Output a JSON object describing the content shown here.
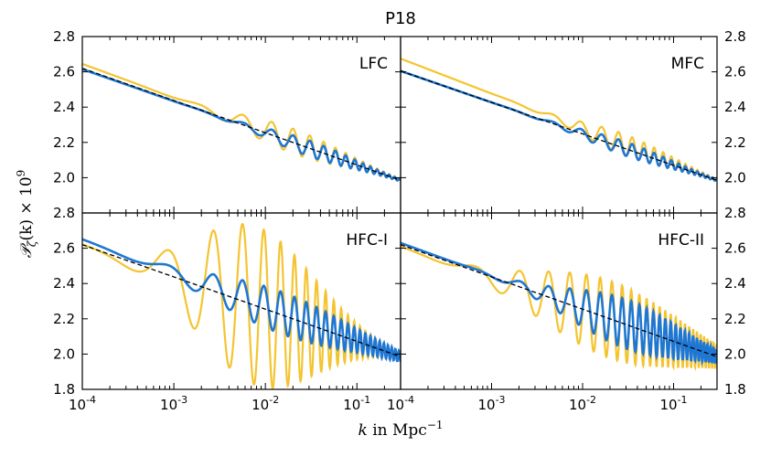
{
  "title": "P18",
  "xlabel_math": "k",
  "xlabel_text": " in Mpc",
  "xlabel_sup": "−1",
  "ylabel_math": "𝒫",
  "ylabel_sub": "ζ",
  "ylabel_rest": "(k) × 10",
  "ylabel_sup": "9",
  "colors": {
    "yellow": "#f4c430",
    "blue": "#1f77d4",
    "baseline": "#000000",
    "frame": "#000000"
  },
  "chart_data": [
    {
      "type": "line",
      "panel_label": "LFC",
      "x_scale": "log",
      "xlim": [
        0.0001,
        0.3
      ],
      "ylim": [
        1.8,
        2.8
      ],
      "yticks": [
        "1.8",
        "2.0",
        "2.2",
        "2.4",
        "2.6",
        "2.8"
      ],
      "xticks": [
        "10^-4",
        "10^-3",
        "10^-2",
        "10^-1"
      ],
      "baseline": {
        "start": 2.62,
        "end": 1.985,
        "style": "dashed"
      },
      "series": [
        {
          "color": "yellow",
          "offset": 0.025,
          "wiggles": [
            {
              "center": 0.02,
              "amp": 0.07,
              "freq": 18,
              "width": 0.8
            }
          ]
        },
        {
          "color": "blue",
          "offset": -0.005,
          "wiggles": [
            {
              "center": 0.03,
              "amp": 0.045,
              "freq": 18,
              "width": 0.7
            }
          ]
        }
      ]
    },
    {
      "type": "line",
      "panel_label": "MFC",
      "x_scale": "log",
      "xlim": [
        0.0001,
        0.3
      ],
      "ylim": [
        1.8,
        2.8
      ],
      "yticks": [
        "1.8",
        "2.0",
        "2.2",
        "2.4",
        "2.6",
        "2.8"
      ],
      "xticks": [
        "10^-4",
        "10^-3",
        "10^-2",
        "10^-1"
      ],
      "baseline": {
        "start": 2.605,
        "end": 1.985,
        "style": "dashed"
      },
      "series": [
        {
          "color": "yellow",
          "offset": 0.07,
          "wiggles": [
            {
              "center": 0.03,
              "amp": 0.06,
              "freq": 20,
              "width": 0.7
            }
          ]
        },
        {
          "color": "blue",
          "offset": 0.0,
          "wiggles": [
            {
              "center": 0.03,
              "amp": 0.04,
              "freq": 20,
              "width": 0.7
            }
          ]
        }
      ]
    },
    {
      "type": "line",
      "panel_label": "HFC-I",
      "x_scale": "log",
      "xlim": [
        0.0001,
        0.3
      ],
      "ylim": [
        1.8,
        2.8
      ],
      "yticks": [
        "1.8",
        "2.0",
        "2.2",
        "2.4",
        "2.6",
        "2.8"
      ],
      "xticks": [
        "10^-4",
        "10^-3",
        "10^-2",
        "10^-1"
      ],
      "baseline": {
        "start": 2.62,
        "end": 1.985,
        "style": "dashed"
      },
      "series": [
        {
          "color": "yellow",
          "offset": 0.0,
          "wiggles": [
            {
              "center": 0.008,
              "amp": 0.45,
              "freq": 26,
              "width": 0.9
            }
          ]
        },
        {
          "color": "blue",
          "offset": 0.03,
          "wiggles": [
            {
              "center": 0.015,
              "amp": 0.12,
              "freq": 26,
              "width": 1.1
            }
          ]
        }
      ]
    },
    {
      "type": "line",
      "panel_label": "HFC-II",
      "x_scale": "log",
      "xlim": [
        0.0001,
        0.3
      ],
      "ylim": [
        1.8,
        2.8
      ],
      "yticks": [
        "1.8",
        "2.0",
        "2.2",
        "2.4",
        "2.6",
        "2.8"
      ],
      "xticks": [
        "10^-4",
        "10^-3",
        "10^-2",
        "10^-1"
      ],
      "baseline": {
        "start": 2.62,
        "end": 1.985,
        "style": "dashed"
      },
      "series": [
        {
          "color": "yellow",
          "offset": -0.01,
          "wiggles": [
            {
              "center": 0.02,
              "amp": 0.22,
              "freq": 30,
              "width": 1.1
            }
          ]
        },
        {
          "color": "blue",
          "offset": 0.01,
          "wiggles": [
            {
              "center": 0.03,
              "amp": 0.14,
              "freq": 30,
              "width": 0.9
            }
          ]
        }
      ]
    }
  ]
}
